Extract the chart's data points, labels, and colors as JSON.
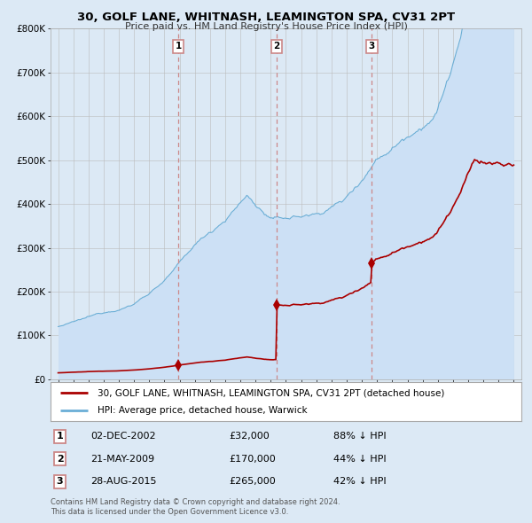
{
  "title": "30, GOLF LANE, WHITNASH, LEAMINGTON SPA, CV31 2PT",
  "subtitle": "Price paid vs. HM Land Registry's House Price Index (HPI)",
  "ylim": [
    0,
    800000
  ],
  "yticks": [
    0,
    100000,
    200000,
    300000,
    400000,
    500000,
    600000,
    700000,
    800000
  ],
  "ytick_labels": [
    "£0",
    "£100K",
    "£200K",
    "£300K",
    "£400K",
    "£500K",
    "£600K",
    "£700K",
    "£800K"
  ],
  "transactions": [
    {
      "date_num": 2002.92,
      "price": 32000,
      "label": "1",
      "date_str": "02-DEC-2002",
      "price_str": "£32,000",
      "pct": "88% ↓ HPI"
    },
    {
      "date_num": 2009.38,
      "price": 170000,
      "label": "2",
      "date_str": "21-MAY-2009",
      "price_str": "£170,000",
      "pct": "44% ↓ HPI"
    },
    {
      "date_num": 2015.65,
      "price": 265000,
      "label": "3",
      "date_str": "28-AUG-2015",
      "price_str": "£265,000",
      "pct": "42% ↓ HPI"
    }
  ],
  "hpi_fill_color": "#cce0f5",
  "hpi_line_color": "#6aaed6",
  "price_color": "#aa0000",
  "vline_color": "#cc8888",
  "background_color": "#dce9f5",
  "plot_bg_color": "#dce9f5",
  "legend_label_price": "30, GOLF LANE, WHITNASH, LEAMINGTON SPA, CV31 2PT (detached house)",
  "legend_label_hpi": "HPI: Average price, detached house, Warwick",
  "footer": "Contains HM Land Registry data © Crown copyright and database right 2024.\nThis data is licensed under the Open Government Licence v3.0.",
  "xlim_start": 1994.5,
  "xlim_end": 2025.5,
  "xticks": [
    1995,
    1996,
    1997,
    1998,
    1999,
    2000,
    2001,
    2002,
    2003,
    2004,
    2005,
    2006,
    2007,
    2008,
    2009,
    2010,
    2011,
    2012,
    2013,
    2014,
    2015,
    2016,
    2017,
    2018,
    2019,
    2020,
    2021,
    2022,
    2023,
    2024,
    2025
  ]
}
